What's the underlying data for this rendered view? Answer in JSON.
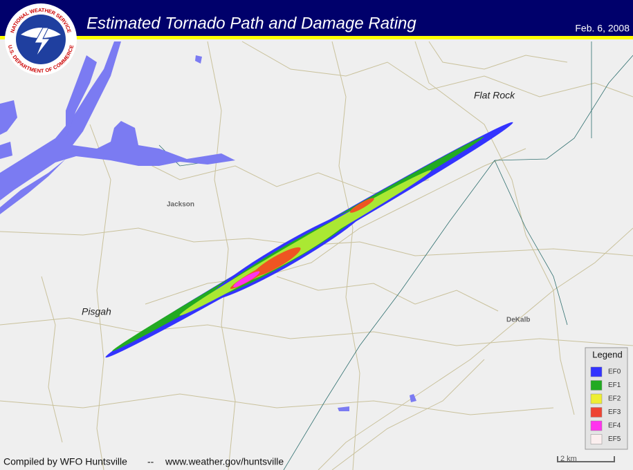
{
  "header": {
    "title": "Estimated Tornado Path and Damage Rating",
    "date": "Feb. 6, 2008"
  },
  "logo": {
    "top_text": "NATIONAL WEATHER SERVICE",
    "bottom_text": "U.S. DEPARTMENT OF COMMERCE"
  },
  "places": [
    {
      "label": "Flat Rock"
    },
    {
      "label": "Jackson"
    },
    {
      "label": "Pisgah"
    },
    {
      "label": "DeKalb"
    }
  ],
  "legend": {
    "title": "Legend",
    "items": [
      {
        "label": "EF0",
        "color": "#3333ff"
      },
      {
        "label": "EF1",
        "color": "#22aa22"
      },
      {
        "label": "EF2",
        "color": "#eeee33"
      },
      {
        "label": "EF3",
        "color": "#ee4433"
      },
      {
        "label": "EF4",
        "color": "#ff33ee"
      },
      {
        "label": "EF5",
        "color": "#fbeeee"
      }
    ]
  },
  "footer": {
    "credit": "Compiled by WFO Huntsville",
    "separator": "--",
    "url": "www.weather.gov/huntsville"
  },
  "scale": {
    "label": "2 km"
  }
}
